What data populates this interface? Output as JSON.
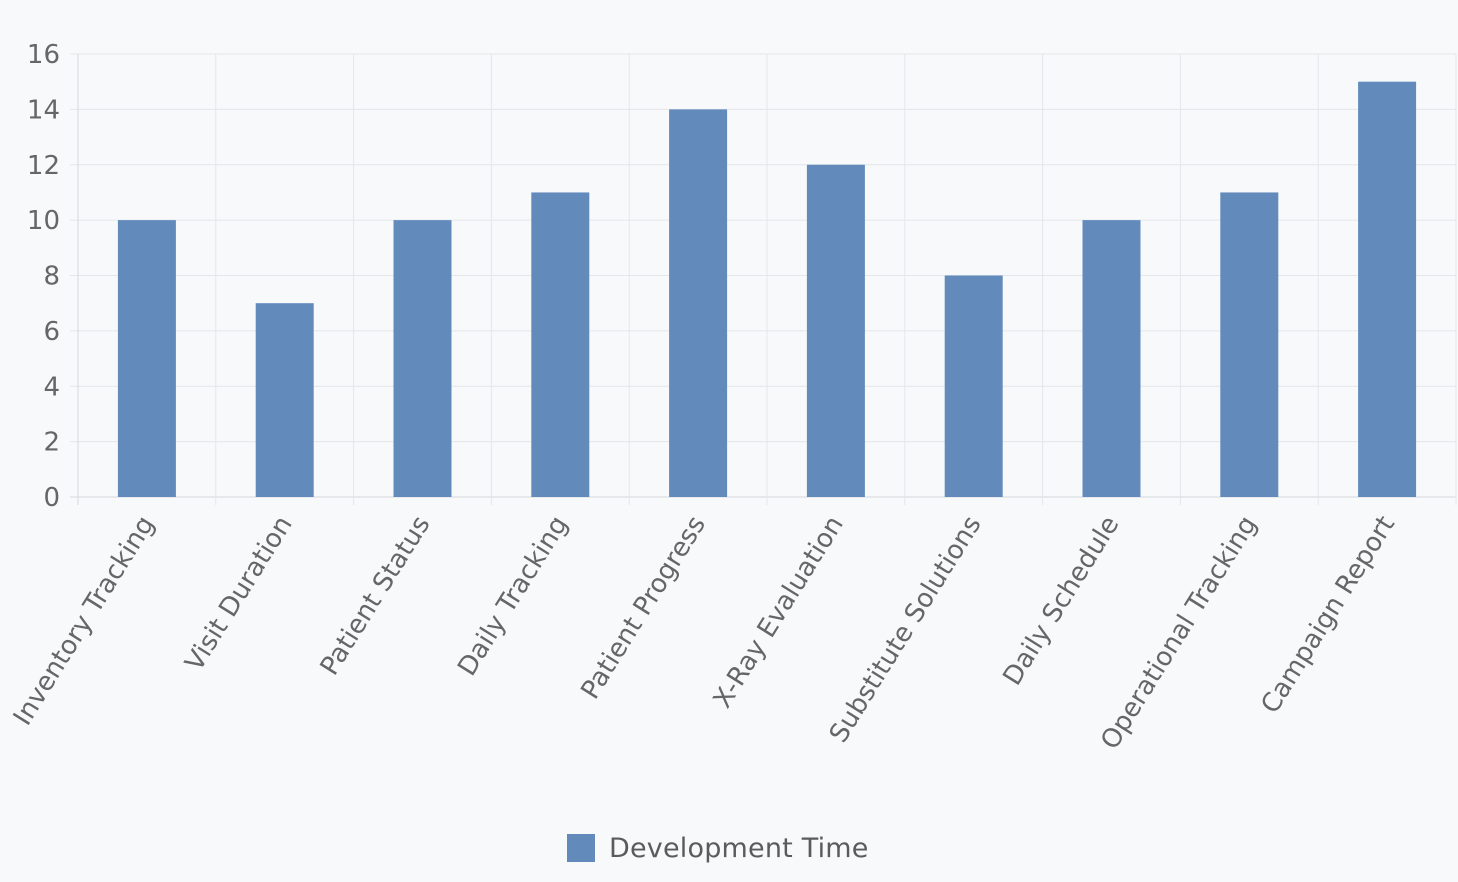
{
  "chart_data": {
    "type": "bar",
    "categories": [
      "Inventory Tracking",
      "Visit Duration",
      "Patient Status",
      "Daily Tracking",
      "Patient Progress",
      "X-Ray Evaluation",
      "Substitute Solutions",
      "Daily Schedule",
      "Operational Tracking",
      "Campaign Report"
    ],
    "series": [
      {
        "name": "Development Time",
        "values": [
          10,
          7,
          10,
          11,
          14,
          12,
          8,
          10,
          11,
          15
        ],
        "color": "#628bbc"
      }
    ],
    "ylim": [
      0,
      16
    ],
    "yticks": [
      "0",
      "2",
      "4",
      "6",
      "8",
      "10",
      "12",
      "14",
      "16"
    ],
    "grid": true,
    "legend_position": "bottom"
  },
  "legend": {
    "items": [
      {
        "label": "Development Time",
        "color": "#628bbc"
      }
    ]
  }
}
